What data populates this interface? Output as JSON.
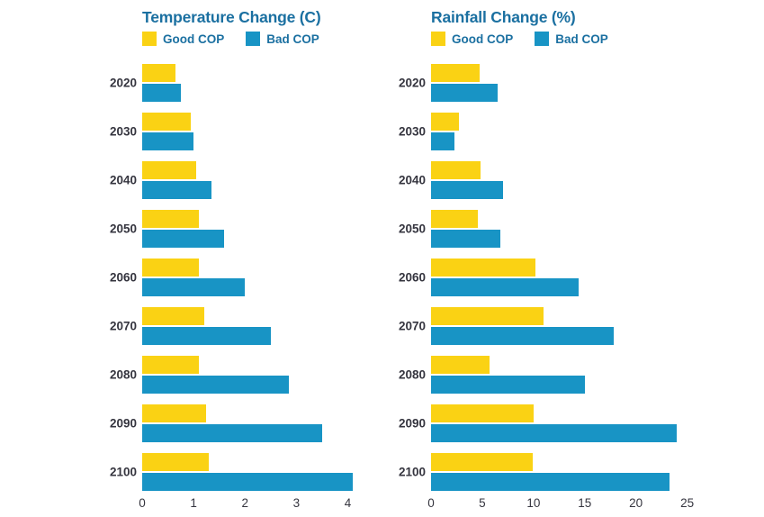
{
  "colors": {
    "good_cop": "#FAD214",
    "bad_cop": "#1894C5",
    "heading_text": "#1B70A1",
    "label_text": "#35353F",
    "background": "#FFFFFF"
  },
  "chart_data": [
    {
      "type": "bar",
      "orientation": "horizontal",
      "title": "Temperature Change (C)",
      "legend": [
        {
          "label": "Good COP",
          "color_key": "good_cop"
        },
        {
          "label": "Bad COP",
          "color_key": "bad_cop"
        }
      ],
      "legend_position": "top-left",
      "grid": false,
      "categories": [
        "2020",
        "2030",
        "2040",
        "2050",
        "2060",
        "2070",
        "2080",
        "2090",
        "2100"
      ],
      "series": [
        {
          "name": "Good COP",
          "color_key": "good_cop",
          "values": [
            0.65,
            0.95,
            1.05,
            1.1,
            1.1,
            1.2,
            1.1,
            1.25,
            1.3
          ]
        },
        {
          "name": "Bad COP",
          "color_key": "bad_cop",
          "values": [
            0.75,
            1.0,
            1.35,
            1.6,
            2.0,
            2.5,
            2.85,
            3.5,
            4.1
          ]
        }
      ],
      "x_ticks": [
        0,
        1,
        2,
        3,
        4
      ],
      "xlim": [
        0,
        4.2
      ]
    },
    {
      "type": "bar",
      "orientation": "horizontal",
      "title": "Rainfall Change (%)",
      "legend": [
        {
          "label": "Good COP",
          "color_key": "good_cop"
        },
        {
          "label": "Bad COP",
          "color_key": "bad_cop"
        }
      ],
      "legend_position": "top-left",
      "grid": false,
      "categories": [
        "2020",
        "2030",
        "2040",
        "2050",
        "2060",
        "2070",
        "2080",
        "2090",
        "2100"
      ],
      "series": [
        {
          "name": "Good COP",
          "color_key": "good_cop",
          "values": [
            4.7,
            2.7,
            4.8,
            4.6,
            10.2,
            11.0,
            5.7,
            10.0,
            9.9
          ]
        },
        {
          "name": "Bad COP",
          "color_key": "bad_cop",
          "values": [
            6.5,
            2.3,
            7.0,
            6.8,
            14.4,
            17.8,
            15.0,
            24.0,
            23.3
          ]
        }
      ],
      "x_ticks": [
        0,
        5,
        10,
        15,
        20,
        25
      ],
      "xlim": [
        0,
        26
      ]
    }
  ]
}
